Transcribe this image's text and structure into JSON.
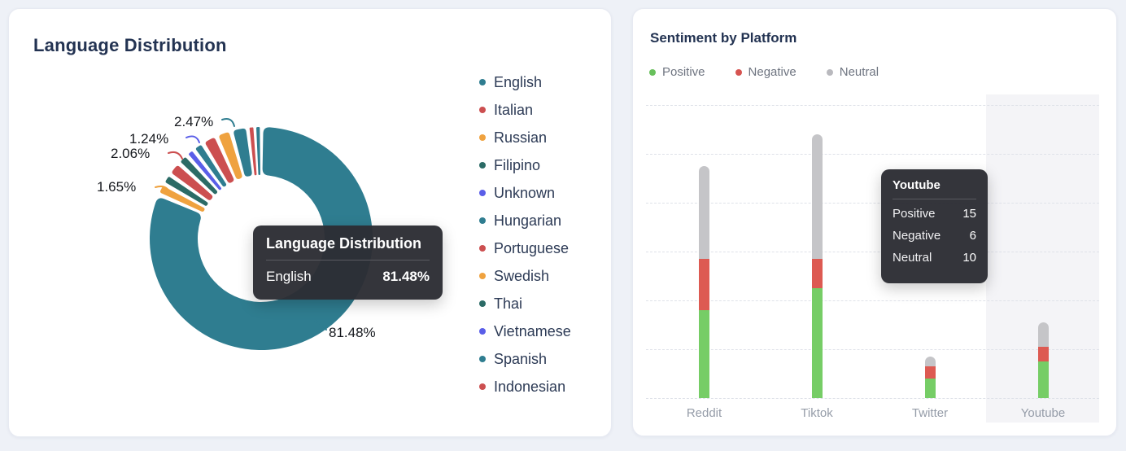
{
  "page": {
    "background": "#eef1f7"
  },
  "left_card": {
    "title": "Language Distribution",
    "legend": [
      {
        "label": "English",
        "color": "#2f7d90"
      },
      {
        "label": "Italian",
        "color": "#cc4f50"
      },
      {
        "label": "Russian",
        "color": "#efa23f"
      },
      {
        "label": "Filipino",
        "color": "#2b6b66"
      },
      {
        "label": "Unknown",
        "color": "#5a5ee8"
      },
      {
        "label": "Hungarian",
        "color": "#2f7d90"
      },
      {
        "label": "Portuguese",
        "color": "#cc4f50"
      },
      {
        "label": "Swedish",
        "color": "#efa23f"
      },
      {
        "label": "Thai",
        "color": "#2b6b66"
      },
      {
        "label": "Vietnamese",
        "color": "#5a5ee8"
      },
      {
        "label": "Spanish",
        "color": "#2f7d90"
      },
      {
        "label": "Indonesian",
        "color": "#cc4f50"
      }
    ],
    "callouts": [
      {
        "text": "2.47%"
      },
      {
        "text": "1.24%"
      },
      {
        "text": "2.06%"
      },
      {
        "text": "1.65%"
      },
      {
        "text": "81.48%"
      }
    ],
    "tooltip": {
      "title": "Language Distribution",
      "series": "English",
      "value": "81.48%"
    }
  },
  "right_card": {
    "title": "Sentiment by Platform",
    "legend": [
      {
        "label": "Positive",
        "color": "#68c05c"
      },
      {
        "label": "Negative",
        "color": "#d65451"
      },
      {
        "label": "Neutral",
        "color": "#b9b9be"
      }
    ],
    "x_labels": [
      "Reddit",
      "Tiktok",
      "Twitter",
      "Youtube"
    ],
    "tooltip": {
      "title": "Youtube",
      "rows": [
        {
          "label": "Positive",
          "value": "15"
        },
        {
          "label": "Negative",
          "value": "6"
        },
        {
          "label": "Neutral",
          "value": "10"
        }
      ]
    }
  },
  "chart_data": [
    {
      "type": "pie",
      "variant": "donut",
      "title": "Language Distribution",
      "legend_entries": [
        "English",
        "Italian",
        "Russian",
        "Filipino",
        "Unknown",
        "Hungarian",
        "Portuguese",
        "Swedish",
        "Thai",
        "Vietnamese",
        "Spanish",
        "Indonesian"
      ],
      "hovered_slice": {
        "name": "English",
        "value_pct": 81.48
      },
      "visible_data_labels": [
        "2.47%",
        "1.24%",
        "2.06%",
        "1.65%",
        "81.48%"
      ],
      "segments": [
        {
          "name": "English",
          "pct": 81.48,
          "color": "#2f7d90",
          "label": "81.48%"
        },
        {
          "pct": 1.65,
          "color": "#efa23f",
          "label": "1.65%"
        },
        {
          "pct": 1.6,
          "color": "#2b6b66"
        },
        {
          "pct": 2.06,
          "color": "#cc4f50",
          "label": "2.06%"
        },
        {
          "pct": 1.6,
          "color": "#2b6b66"
        },
        {
          "pct": 1.24,
          "color": "#5a5ee8",
          "label": "1.24%"
        },
        {
          "pct": 1.6,
          "color": "#2f7d90"
        },
        {
          "pct": 2.2,
          "color": "#cc4f50"
        },
        {
          "pct": 2.2,
          "color": "#efa23f"
        },
        {
          "pct": 2.47,
          "color": "#2f7d90",
          "label": "2.47%"
        },
        {
          "pct": 1.0,
          "color": "#cc4f50"
        },
        {
          "pct": 0.9,
          "color": "#2f7d90"
        }
      ]
    },
    {
      "type": "stacked-bar",
      "title": "Sentiment by Platform",
      "categories": [
        "Reddit",
        "Tiktok",
        "Twitter",
        "Youtube"
      ],
      "series": [
        {
          "name": "Positive",
          "color": "#76cd66",
          "values": [
            36,
            45,
            8,
            15
          ]
        },
        {
          "name": "Negative",
          "color": "#dd5a52",
          "values": [
            21,
            12,
            5,
            6
          ]
        },
        {
          "name": "Neutral",
          "color": "#c5c5c8",
          "values": [
            38,
            51,
            4,
            10
          ]
        }
      ],
      "y_axis": {
        "min": 0,
        "max": 120,
        "step": 20,
        "tick_labels_visible": false
      },
      "grid": "dashed-horizontal",
      "hovered_category": "Youtube",
      "legend_position": "top-left"
    }
  ]
}
